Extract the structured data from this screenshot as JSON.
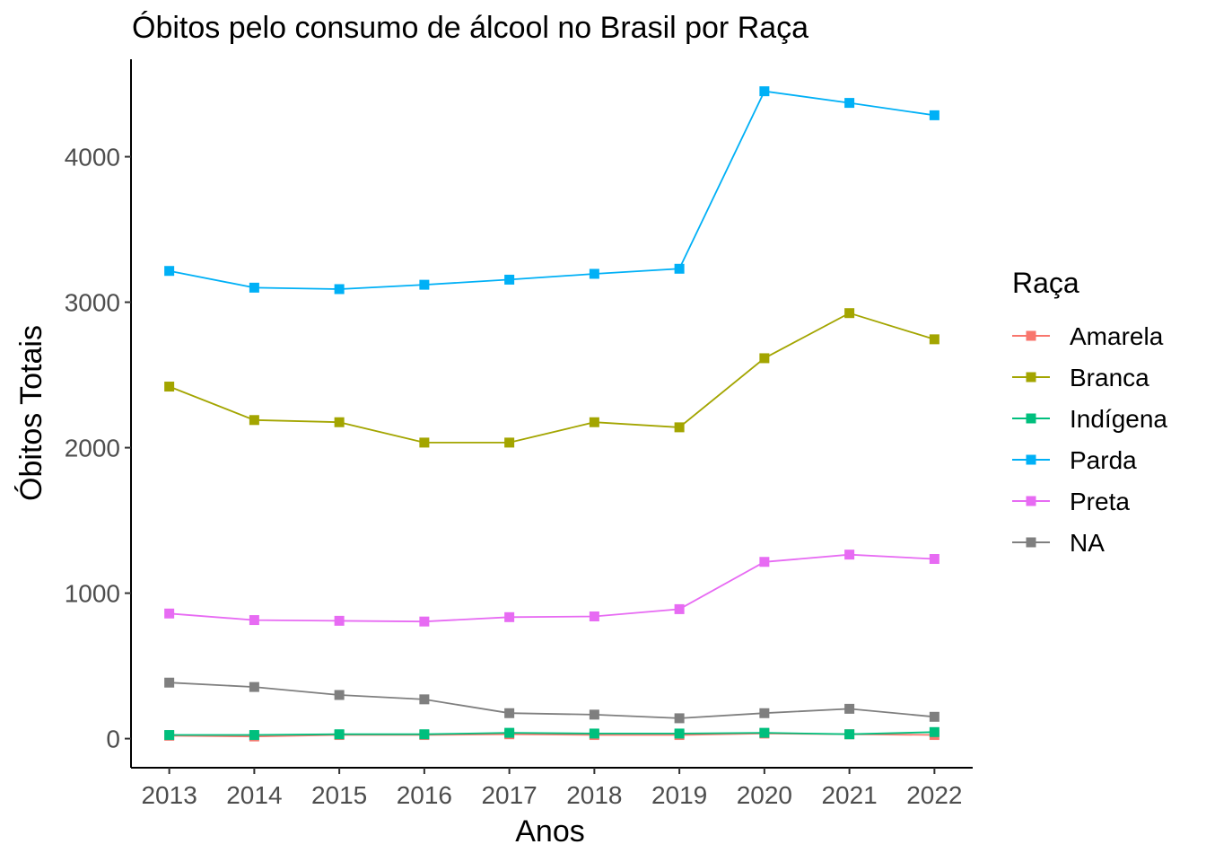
{
  "chart_data": {
    "type": "line",
    "title": "Óbitos pelo consumo de álcool no Brasil por Raça",
    "xlabel": "Anos",
    "ylabel": "Óbitos Totais",
    "x": [
      2013,
      2014,
      2015,
      2016,
      2017,
      2018,
      2019,
      2020,
      2021,
      2022
    ],
    "xlim": [
      2012.55,
      2022.45
    ],
    "ylim": [
      -200,
      4670
    ],
    "yticks": [
      0,
      1000,
      2000,
      3000,
      4000
    ],
    "grid": false,
    "legend": {
      "title": "Raça",
      "position": "right"
    },
    "series": [
      {
        "name": "Amarela",
        "color": "#F8766D",
        "values": [
          20,
          15,
          25,
          25,
          30,
          25,
          25,
          35,
          30,
          25
        ]
      },
      {
        "name": "Branca",
        "color": "#A3A500",
        "values": [
          2420,
          2190,
          2175,
          2035,
          2035,
          2175,
          2140,
          2615,
          2925,
          2745
        ]
      },
      {
        "name": "Indígena",
        "color": "#00BF7D",
        "values": [
          25,
          25,
          30,
          30,
          40,
          35,
          35,
          40,
          30,
          45
        ]
      },
      {
        "name": "Parda",
        "color": "#00B0F6",
        "values": [
          3215,
          3100,
          3090,
          3120,
          3155,
          3195,
          3230,
          4450,
          4370,
          4285
        ]
      },
      {
        "name": "Preta",
        "color": "#E76BF3",
        "values": [
          860,
          815,
          810,
          805,
          835,
          840,
          890,
          1215,
          1265,
          1235
        ]
      },
      {
        "name": "NA",
        "color": "#7F7F7F",
        "values": [
          385,
          355,
          300,
          270,
          175,
          165,
          140,
          175,
          205,
          150
        ]
      }
    ]
  }
}
